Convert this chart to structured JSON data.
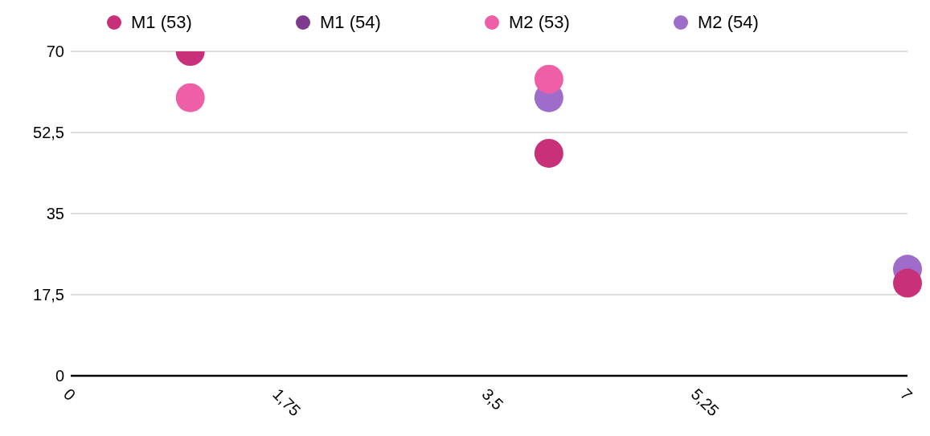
{
  "chart_data": {
    "type": "scatter",
    "x": [
      1,
      4,
      7
    ],
    "series": [
      {
        "name": "M1 (53)",
        "color": "#c8307a",
        "values": [
          70,
          48,
          20
        ]
      },
      {
        "name": "M1 (54)",
        "color": "#7e3a8e",
        "values": [
          null,
          null,
          null
        ]
      },
      {
        "name": "M2 (53)",
        "color": "#ee5fa7",
        "values": [
          60,
          64,
          null
        ]
      },
      {
        "name": "M2 (54)",
        "color": "#9e6cc9",
        "values": [
          null,
          60,
          23
        ]
      }
    ],
    "xlim": [
      0,
      7
    ],
    "xticks": [
      0,
      {
        "value": 1.75,
        "label": "1,75"
      },
      {
        "value": 3.5,
        "label": "3,5"
      },
      {
        "value": 5.25,
        "label": "5,25"
      },
      7
    ],
    "ylim": [
      0,
      70
    ],
    "yticks": [
      0,
      {
        "value": 17.5,
        "label": "17,5"
      },
      35,
      {
        "value": 52.5,
        "label": "52,5"
      },
      70
    ],
    "grid": "y",
    "legend": "top",
    "marker": "circle"
  }
}
